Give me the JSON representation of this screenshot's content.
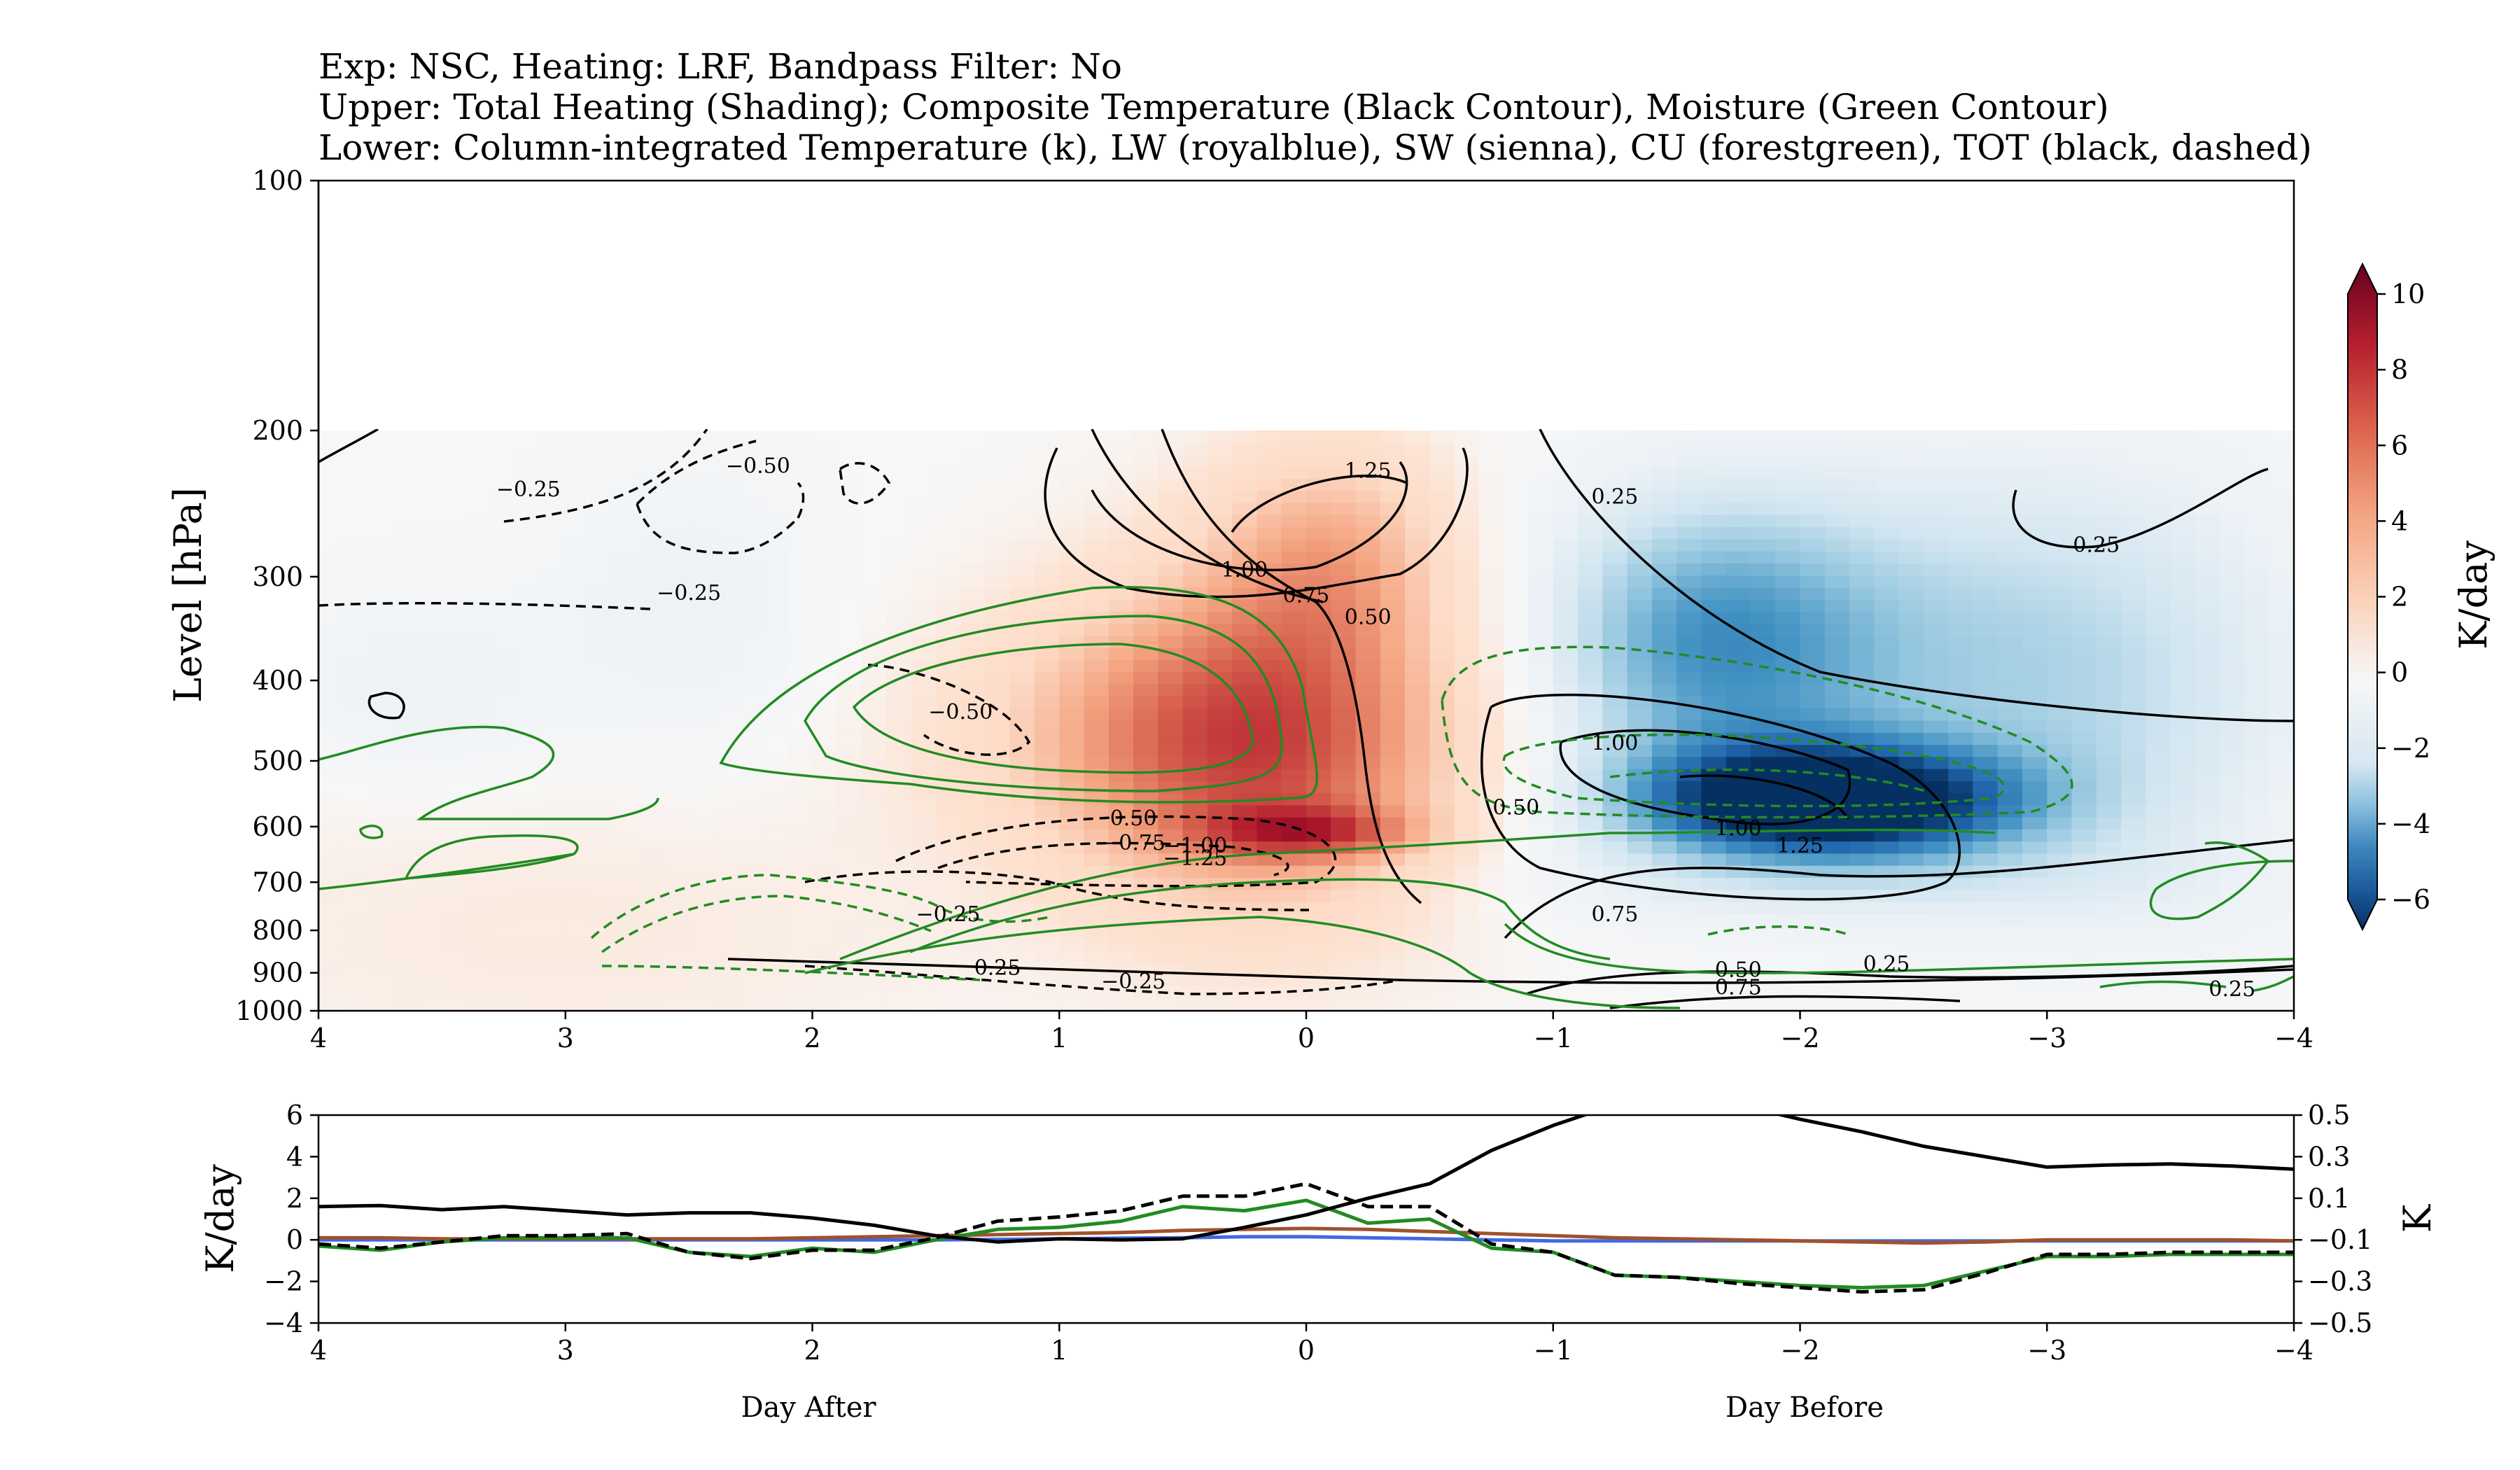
{
  "titles": [
    "Exp: NSC, Heating: LRF, Bandpass Filter: No",
    "Upper: Total Heating (Shading); Composite Temperature (Black Contour), Moisture (Green Contour)",
    "Lower: Column-integrated Temperature (k), LW (royalblue), SW (sienna), CU (forestgreen), TOT (black, dashed)"
  ],
  "colors": {
    "lw": "#4169e1",
    "sw": "#a0522d",
    "cu": "#228b22",
    "tot": "#000000",
    "temperature": "#000000",
    "moisture": "#228b22"
  },
  "chart_data": [
    {
      "type": "heatmap",
      "id": "upper",
      "ylabel": "Level [hPa]",
      "yscale": "log",
      "ylim": [
        1000,
        100
      ],
      "xlim": [
        4,
        -4
      ],
      "xticks": [
        4,
        3,
        2,
        1,
        0,
        -1,
        -2,
        -3,
        -4
      ],
      "xtick_labels": [
        "4",
        "3",
        "2",
        "1",
        "0",
        "−1",
        "−2",
        "−3",
        "−4"
      ],
      "yticks": [
        100,
        200,
        300,
        400,
        500,
        600,
        700,
        800,
        900,
        1000
      ],
      "ytick_labels": [
        "100",
        "200",
        "300",
        "400",
        "500",
        "600",
        "700",
        "800",
        "900",
        "1000"
      ],
      "data_ylim": [
        1000,
        200
      ],
      "colorbar": {
        "label": "K/day",
        "range": [
          -6,
          10
        ],
        "ticks": [
          10,
          8,
          6,
          4,
          2,
          0,
          -2,
          -4,
          -6
        ],
        "tick_labels": [
          "10",
          "8",
          "6",
          "4",
          "2",
          "0",
          "−2",
          "−4",
          "−6"
        ],
        "colormap": "RdBu_r"
      },
      "heating_blobs": [
        {
          "x": 0.15,
          "p": 480,
          "amp": 5.8,
          "sx": 0.55,
          "sp": 0.32
        },
        {
          "x": -0.1,
          "p": 280,
          "amp": 3.0,
          "sx": 0.35,
          "sp": 0.22
        },
        {
          "x": 0.0,
          "p": 610,
          "amp": 4.0,
          "sx": 0.3,
          "sp": 0.05
        },
        {
          "x": 0.7,
          "p": 460,
          "amp": 1.8,
          "sx": 0.6,
          "sp": 0.25
        },
        {
          "x": -2.1,
          "p": 560,
          "amp": -6.5,
          "sx": 0.55,
          "sp": 0.11
        },
        {
          "x": -1.6,
          "p": 360,
          "amp": -3.2,
          "sx": 0.5,
          "sp": 0.3
        },
        {
          "x": -2.6,
          "p": 380,
          "amp": -2.0,
          "sx": 0.8,
          "sp": 0.4
        },
        {
          "x": -3.4,
          "p": 420,
          "amp": -1.0,
          "sx": 0.6,
          "sp": 0.5
        },
        {
          "x": 2.5,
          "p": 330,
          "amp": -0.8,
          "sx": 0.4,
          "sp": 0.3
        },
        {
          "x": 3.6,
          "p": 410,
          "amp": -0.8,
          "sx": 0.4,
          "sp": 0.2
        },
        {
          "x": 3.0,
          "p": 800,
          "amp": 0.6,
          "sx": 1.2,
          "sp": 0.3
        },
        {
          "x": -2.0,
          "p": 700,
          "amp": -0.8,
          "sx": 1.2,
          "sp": 0.1
        }
      ],
      "contour_labels": [
        {
          "text": "−0.25",
          "x": 3.15,
          "p": 240,
          "color": "#000000"
        },
        {
          "text": "−0.50",
          "x": 2.22,
          "p": 225,
          "color": "#000000"
        },
        {
          "text": "−0.25",
          "x": 2.5,
          "p": 320,
          "color": "#000000"
        },
        {
          "text": "−0.50",
          "x": 1.4,
          "p": 445,
          "color": "#000000"
        },
        {
          "text": "1.25",
          "x": -0.25,
          "p": 228,
          "color": "#000000"
        },
        {
          "text": "1.00",
          "x": 0.25,
          "p": 300,
          "color": "#000000"
        },
        {
          "text": "0.75",
          "x": 0.0,
          "p": 322,
          "color": "#000000"
        },
        {
          "text": "0.50",
          "x": -0.25,
          "p": 342,
          "color": "#000000"
        },
        {
          "text": "0.25",
          "x": -1.25,
          "p": 245,
          "color": "#000000"
        },
        {
          "text": "0.25",
          "x": -3.2,
          "p": 280,
          "color": "#000000"
        },
        {
          "text": "1.00",
          "x": -1.25,
          "p": 485,
          "color": "#000000"
        },
        {
          "text": "0.50",
          "x": -0.85,
          "p": 580,
          "color": "#000000"
        },
        {
          "text": "1.00",
          "x": -1.75,
          "p": 615,
          "color": "#000000"
        },
        {
          "text": "1.25",
          "x": -2.0,
          "p": 645,
          "color": "#000000"
        },
        {
          "text": "0.50",
          "x": 0.7,
          "p": 598,
          "color": "#000000"
        },
        {
          "text": "−0.75",
          "x": 0.7,
          "p": 640,
          "color": "#000000"
        },
        {
          "text": "−1.00",
          "x": 0.45,
          "p": 645,
          "color": "#000000"
        },
        {
          "text": "−1.25",
          "x": 0.45,
          "p": 668,
          "color": "#000000"
        },
        {
          "text": "−0.25",
          "x": 1.45,
          "p": 780,
          "color": "#000000"
        },
        {
          "text": "0.75",
          "x": -1.25,
          "p": 780,
          "color": "#000000"
        },
        {
          "text": "0.25",
          "x": 1.25,
          "p": 905,
          "color": "#000000"
        },
        {
          "text": "−0.25",
          "x": 0.7,
          "p": 940,
          "color": "#000000"
        },
        {
          "text": "0.50",
          "x": -1.75,
          "p": 910,
          "color": "#000000"
        },
        {
          "text": "0.75",
          "x": -1.75,
          "p": 955,
          "color": "#000000"
        },
        {
          "text": "0.25",
          "x": -2.35,
          "p": 895,
          "color": "#000000"
        },
        {
          "text": "0.25",
          "x": -3.75,
          "p": 960,
          "color": "#000000"
        }
      ]
    },
    {
      "type": "line",
      "id": "lower",
      "ylabel": "K/day",
      "ylabel_right": "K",
      "xlim": [
        4,
        -4
      ],
      "ylim": [
        -4,
        6
      ],
      "ylim_right": [
        -0.5,
        0.5
      ],
      "xticks": [
        4,
        3,
        2,
        1,
        0,
        -1,
        -2,
        -3,
        -4
      ],
      "xtick_labels": [
        "4",
        "3",
        "2",
        "1",
        "0",
        "−1",
        "−2",
        "−3",
        "−4"
      ],
      "yticks": [
        6,
        4,
        2,
        0,
        -2,
        -4
      ],
      "ytick_labels": [
        "6",
        "4",
        "2",
        "0",
        "−2",
        "−4"
      ],
      "yticks_right": [
        0.5,
        0.3,
        0.1,
        -0.1,
        -0.3,
        -0.5
      ],
      "ytick_labels_right": [
        "0.5",
        "0.3",
        "0.1",
        "−0.1",
        "−0.3",
        "−0.5"
      ],
      "xlabels_below": [
        "Day After",
        "Day Before"
      ],
      "x": [
        4,
        3.75,
        3.5,
        3.25,
        3,
        2.75,
        2.5,
        2.25,
        2,
        1.75,
        1.5,
        1.25,
        1,
        0.75,
        0.5,
        0.25,
        0,
        -0.25,
        -0.5,
        -0.75,
        -1,
        -1.25,
        -1.5,
        -1.75,
        -2,
        -2.25,
        -2.5,
        -2.75,
        -3,
        -3.25,
        -3.5,
        -3.75,
        -4
      ],
      "series": [
        {
          "key": "lw",
          "axis": "left",
          "color": "#4169e1",
          "dashed": false,
          "values": [
            0,
            0,
            0,
            0,
            0,
            0,
            0,
            0,
            0,
            0,
            0,
            0.02,
            0.05,
            0.08,
            0.1,
            0.15,
            0.15,
            0.1,
            0.05,
            0,
            -0.05,
            -0.05,
            -0.05,
            -0.05,
            -0.05,
            -0.05,
            -0.05,
            -0.05,
            -0.05,
            -0.05,
            -0.05,
            -0.05,
            -0.05
          ]
        },
        {
          "key": "sw",
          "axis": "left",
          "color": "#a0522d",
          "dashed": false,
          "values": [
            0.1,
            0.1,
            0.05,
            0.05,
            0.05,
            0.05,
            0.05,
            0.05,
            0.1,
            0.15,
            0.2,
            0.25,
            0.3,
            0.35,
            0.45,
            0.5,
            0.55,
            0.5,
            0.4,
            0.3,
            0.2,
            0.1,
            0.05,
            0,
            -0.05,
            -0.1,
            -0.15,
            -0.1,
            0,
            0,
            0,
            0,
            -0.05
          ]
        },
        {
          "key": "cu",
          "axis": "left",
          "color": "#228b22",
          "dashed": false,
          "values": [
            -0.3,
            -0.5,
            -0.1,
            0.1,
            0.1,
            0.1,
            -0.6,
            -0.8,
            -0.4,
            -0.6,
            0,
            0.5,
            0.6,
            0.9,
            1.6,
            1.4,
            1.9,
            0.8,
            1,
            -0.4,
            -0.6,
            -1.7,
            -1.8,
            -2,
            -2.2,
            -2.3,
            -2.2,
            -1.5,
            -0.8,
            -0.8,
            -0.7,
            -0.7,
            -0.7
          ]
        },
        {
          "key": "tot",
          "axis": "left",
          "color": "#000000",
          "dashed": true,
          "values": [
            -0.2,
            -0.4,
            -0.1,
            0.2,
            0.2,
            0.3,
            -0.6,
            -0.9,
            -0.5,
            -0.5,
            0.1,
            0.9,
            1.1,
            1.4,
            2.1,
            2.1,
            2.7,
            1.6,
            1.6,
            -0.2,
            -0.6,
            -1.7,
            -1.8,
            -2.1,
            -2.3,
            -2.5,
            -2.4,
            -1.6,
            -0.7,
            -0.7,
            -0.6,
            -0.6,
            -0.6
          ]
        },
        {
          "key": "temperature",
          "axis": "right",
          "color": "#000000",
          "dashed": false,
          "values": [
            0.06,
            0.065,
            0.045,
            0.06,
            0.04,
            0.02,
            0.03,
            0.03,
            0.005,
            -0.03,
            -0.08,
            -0.11,
            -0.095,
            -0.1,
            -0.095,
            -0.04,
            0.02,
            0.1,
            0.17,
            0.33,
            0.45,
            0.55,
            0.58,
            0.55,
            0.48,
            0.42,
            0.35,
            0.3,
            0.25,
            0.26,
            0.265,
            0.255,
            0.24
          ]
        }
      ]
    }
  ]
}
